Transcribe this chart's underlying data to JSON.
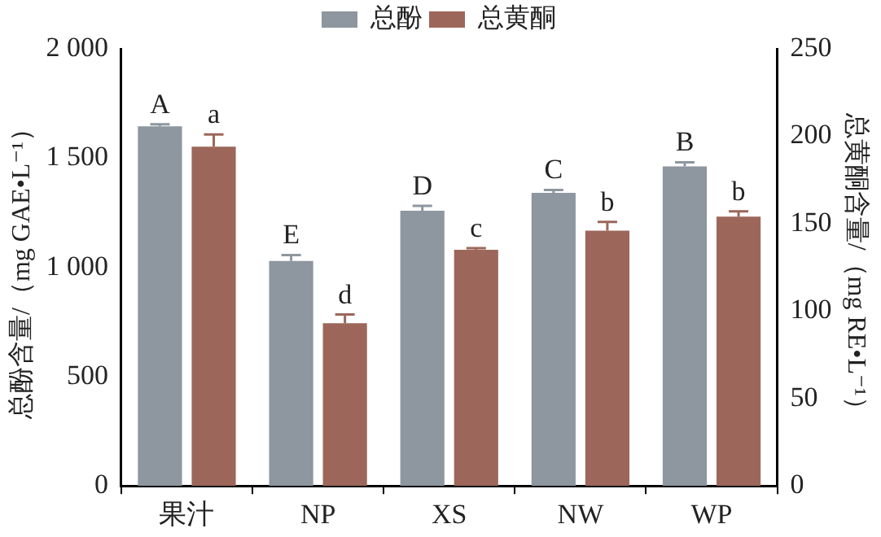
{
  "chart_data": {
    "type": "bar",
    "categories": [
      "果汁",
      "NP",
      "XS",
      "NW",
      "WP"
    ],
    "ylabel": "总酚含量/（mg GAE•L⁻¹）",
    "y2label": "总黄酮含量/（mg RE•L⁻¹）",
    "series": [
      {
        "name": "总酚",
        "color": "#8e969f",
        "values": [
          1645,
          1029,
          1259,
          1341,
          1462
        ],
        "errors": [
          [
            1645,
            1655
          ],
          [
            1029,
            1056
          ],
          [
            1259,
            1281
          ],
          [
            1341,
            1354
          ],
          [
            1462,
            1481
          ]
        ],
        "value_labels": [
          "A",
          "E",
          "D",
          "C",
          "B"
        ]
      },
      {
        "name": "总黄酮",
        "color": "#9c675a",
        "axis": "y2",
        "values": [
          194,
          93,
          135,
          146,
          154
        ],
        "errors": [
          [
            194,
            201
          ],
          [
            93,
            98
          ],
          [
            135,
            136
          ],
          [
            146,
            151
          ],
          [
            154,
            157
          ]
        ],
        "value_labels": [
          "a",
          "d",
          "c",
          "b",
          "b"
        ]
      }
    ],
    "ylim": [
      0,
      2000
    ],
    "yticks": [
      {
        "value": 0,
        "label": "0"
      },
      {
        "value": 500,
        "label": "500"
      },
      {
        "value": 1000,
        "label": "1 000"
      },
      {
        "value": 1500,
        "label": "1 500"
      },
      {
        "value": 2000,
        "label": "2 000"
      }
    ],
    "y2lim": [
      0,
      250
    ],
    "y2ticks": [
      0,
      50,
      100,
      150,
      200,
      250
    ],
    "legend": "top",
    "grid": false
  }
}
